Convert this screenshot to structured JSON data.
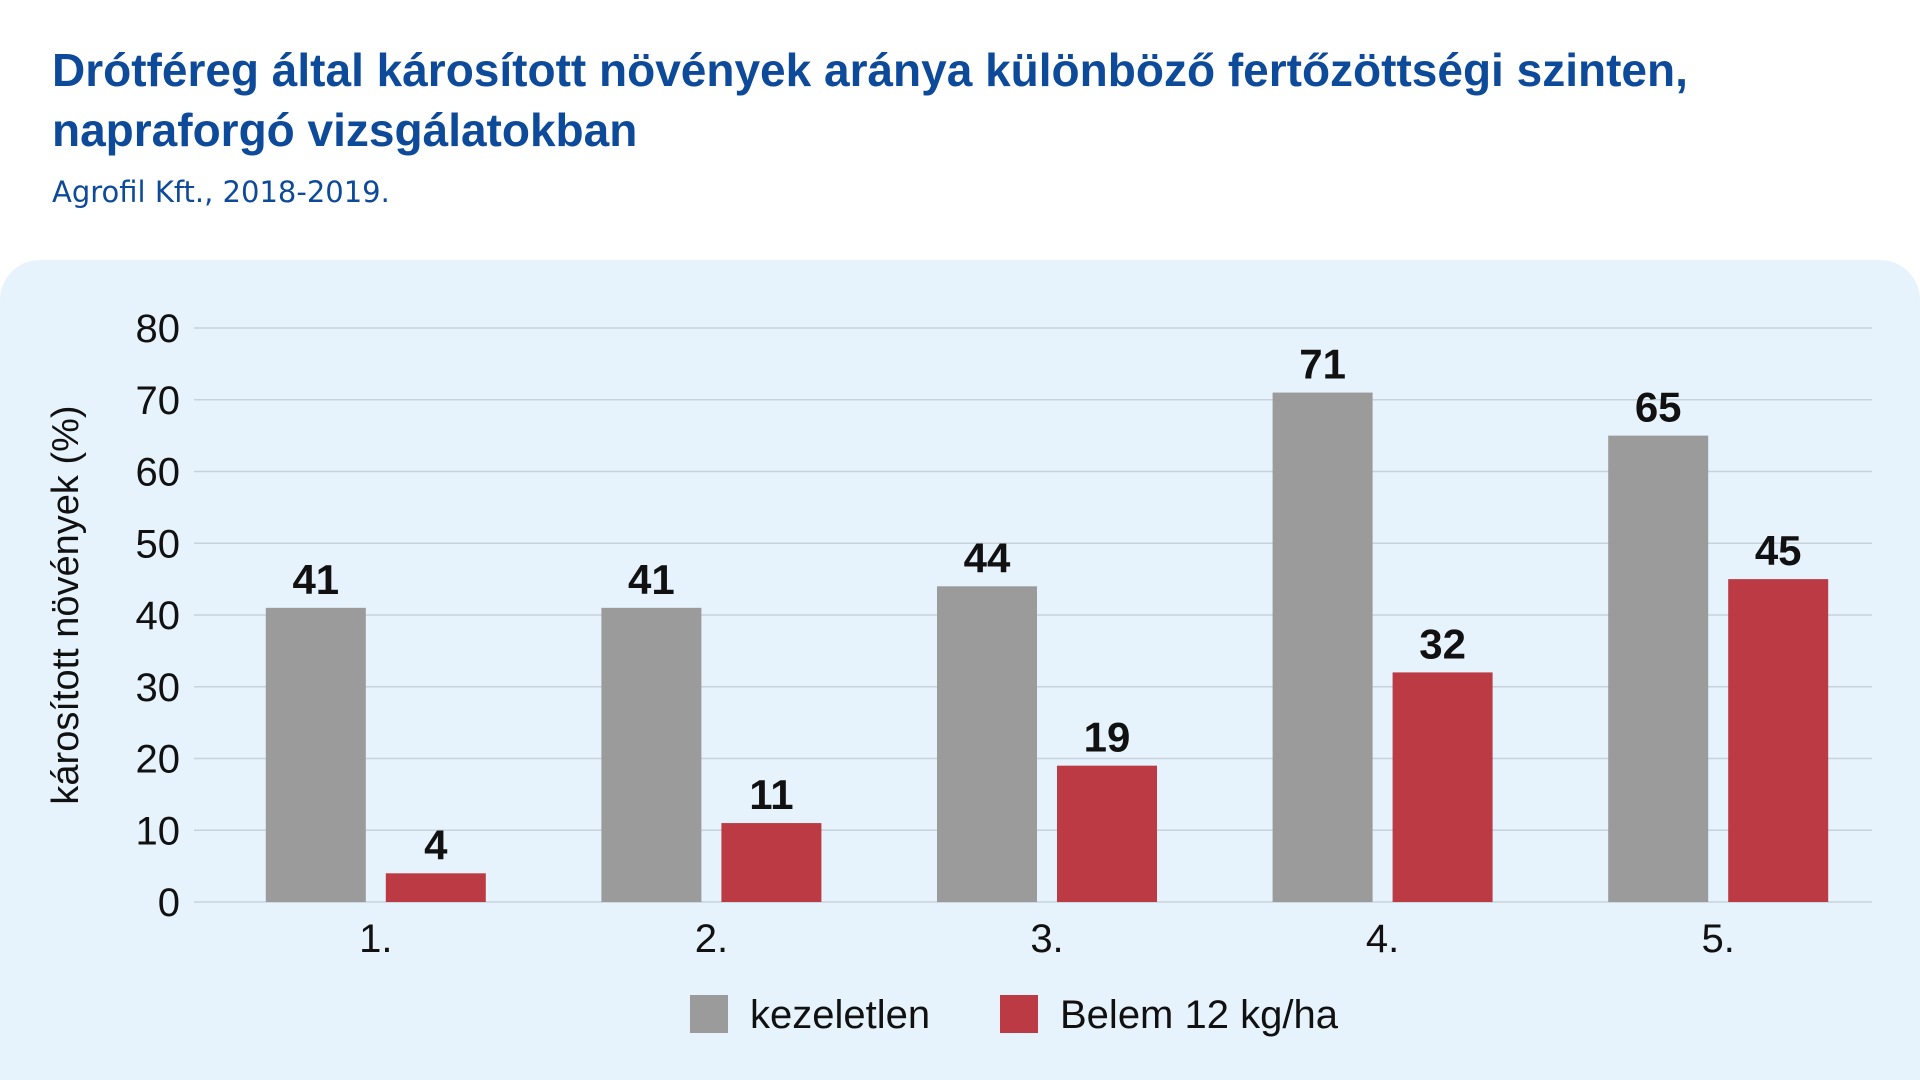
{
  "header": {
    "title": "Drótféreg által károsított növények aránya különböző fertőzöttségi szinten, napraforgó vizsgálatokban",
    "subtitle": "Agrofil Kft., 2018-2019."
  },
  "chart_data": {
    "type": "bar",
    "title": "Drótféreg által károsított növények aránya különböző fertőzöttségi szinten, napraforgó vizsgálatokban",
    "subtitle": "Agrofil Kft., 2018-2019.",
    "xlabel": "",
    "ylabel": "károsított növények (%)",
    "categories": [
      "1.",
      "2.",
      "3.",
      "4.",
      "5."
    ],
    "series": [
      {
        "name": "kezeletlen",
        "values": [
          41,
          41,
          44,
          71,
          65
        ],
        "color": "#9b9b9b"
      },
      {
        "name": "Belem 12 kg/ha",
        "values": [
          4,
          11,
          19,
          32,
          45
        ],
        "color": "#bb3a44"
      }
    ],
    "ylim": [
      0,
      80
    ],
    "yticks": [
      0,
      10,
      20,
      30,
      40,
      50,
      60,
      70,
      80
    ],
    "grid": true,
    "legend": "bottom-center",
    "data_labels": true
  },
  "colors": {
    "title": "#0e4a9a",
    "panel_background": "#e6f3fc",
    "gridline": "#c8d2da"
  }
}
